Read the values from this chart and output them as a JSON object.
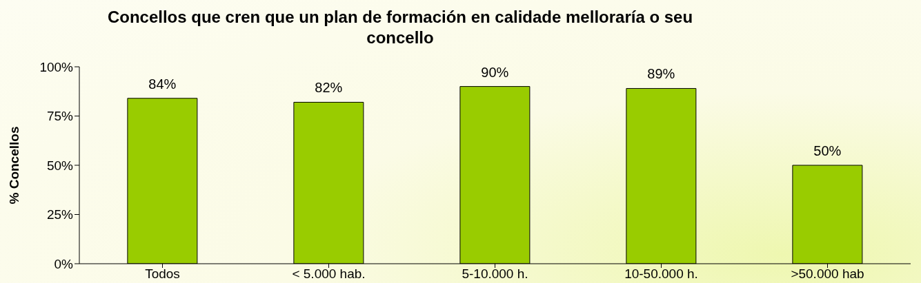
{
  "chart_data": {
    "type": "bar",
    "title": "Concellos que cren que un plan de formación en calidade melloraría o seu concello",
    "ylabel": "% Concellos",
    "categories": [
      "Todos",
      "< 5.000 hab.",
      "5-10.000 h.",
      "10-50.000 h.",
      ">50.000 hab"
    ],
    "values": [
      84,
      82,
      90,
      89,
      50
    ],
    "color": "#99cc00",
    "value_labels": [
      "84%",
      "82%",
      "90%",
      "89%",
      "50%"
    ],
    "ylim": [
      0,
      100
    ],
    "yticks": [
      {
        "value": 0,
        "label": "0%"
      },
      {
        "value": 25,
        "label": "25%"
      },
      {
        "value": 50,
        "label": "50%"
      },
      {
        "value": 75,
        "label": "75%"
      },
      {
        "value": 100,
        "label": "100%"
      }
    ],
    "grid": false,
    "legend": false
  }
}
